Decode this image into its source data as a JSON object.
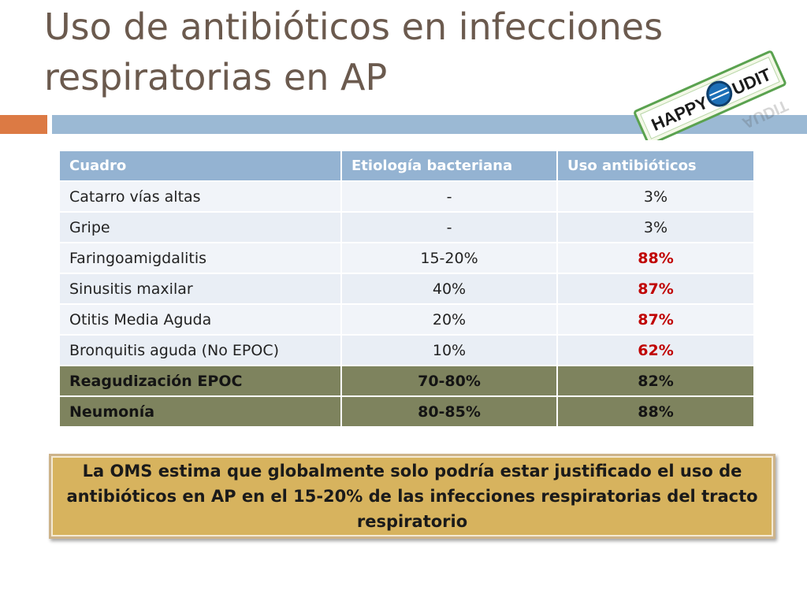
{
  "slide": {
    "title_line1": "Uso de antibióticos en infecciones",
    "title_line2": "respiratorias en AP"
  },
  "logo": {
    "text_left": "HAPPY",
    "text_right": "UDIT",
    "text_reflection": "AUDIT"
  },
  "table": {
    "headers": [
      "Cuadro",
      "Etiología  bacteriana",
      "Uso antibióticos"
    ],
    "rows": [
      [
        "Catarro vías altas",
        "-",
        "3%"
      ],
      [
        "Gripe",
        "-",
        "3%"
      ],
      [
        "Faringoamigdalitis",
        "15-20%",
        "88%"
      ],
      [
        "Sinusitis maxilar",
        "40%",
        "87%"
      ],
      [
        "Otitis Media Aguda",
        "20%",
        "87%"
      ],
      [
        "Bronquitis aguda (No EPOC)",
        "10%",
        "62%"
      ],
      [
        "Reagudización EPOC",
        "70-80%",
        "82%"
      ],
      [
        "Neumonía",
        "80-85%",
        "88%"
      ]
    ]
  },
  "note": {
    "text": "La OMS estima  que globalmente solo podría estar justificado el uso de antibióticos en AP en el 15-20% de las infecciones respiratorias del tracto respiratorio"
  },
  "colors": {
    "title": "#6b5a4e",
    "accent_orange": "#dc7a44",
    "accent_blue": "#9bb9d4",
    "header_bg": "#94b3d2",
    "highlight_row_bg": "#7e835e",
    "emphasis_red": "#c00000",
    "note_bg": "#d7b35e"
  }
}
